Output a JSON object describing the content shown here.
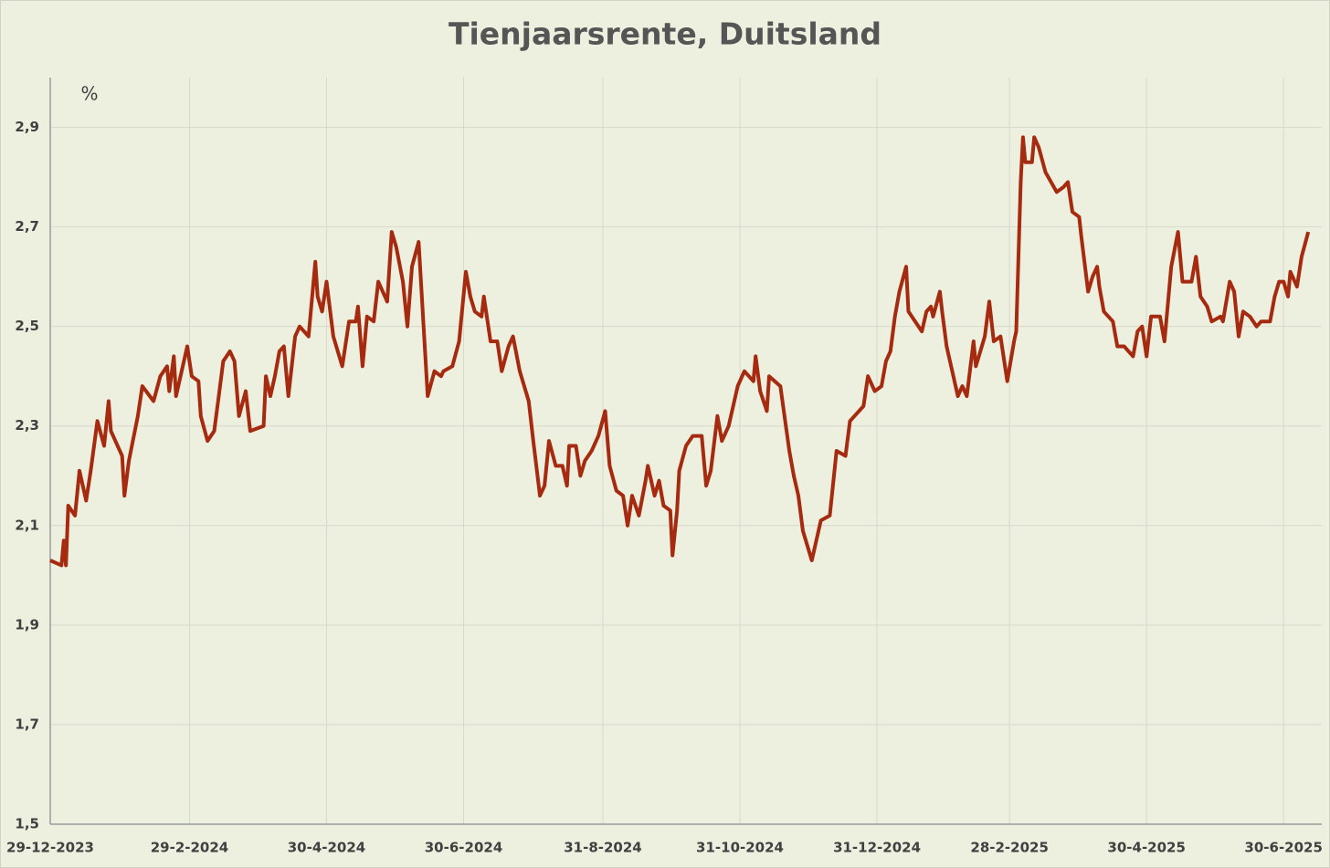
{
  "chart_data": {
    "type": "line",
    "title": "Tienjaarsrente, Duitsland",
    "y_label": "%",
    "x": [
      "2023-12-29",
      "2024-01-03",
      "2024-01-04",
      "2024-01-05",
      "2024-01-06",
      "2024-01-09",
      "2024-01-11",
      "2024-01-14",
      "2024-01-16",
      "2024-01-19",
      "2024-01-22",
      "2024-01-24",
      "2024-01-25",
      "2024-01-30",
      "2024-01-31",
      "2024-02-02",
      "2024-02-06",
      "2024-02-08",
      "2024-02-13",
      "2024-02-16",
      "2024-02-19",
      "2024-02-20",
      "2024-02-22",
      "2024-02-23",
      "2024-02-28",
      "2024-03-01",
      "2024-03-04",
      "2024-03-05",
      "2024-03-08",
      "2024-03-11",
      "2024-03-13",
      "2024-03-15",
      "2024-03-18",
      "2024-03-20",
      "2024-03-22",
      "2024-03-25",
      "2024-03-27",
      "2024-04-02",
      "2024-04-03",
      "2024-04-05",
      "2024-04-07",
      "2024-04-09",
      "2024-04-11",
      "2024-04-13",
      "2024-04-15",
      "2024-04-16",
      "2024-04-18",
      "2024-04-22",
      "2024-04-25",
      "2024-04-26",
      "2024-04-28",
      "2024-04-30",
      "2024-05-03",
      "2024-05-07",
      "2024-05-10",
      "2024-05-13",
      "2024-05-14",
      "2024-05-16",
      "2024-05-18",
      "2024-05-21",
      "2024-05-23",
      "2024-05-27",
      "2024-05-29",
      "2024-05-31",
      "2024-06-03",
      "2024-06-05",
      "2024-06-07",
      "2024-06-10",
      "2024-06-14",
      "2024-06-17",
      "2024-06-20",
      "2024-06-21",
      "2024-06-25",
      "2024-06-28",
      "2024-07-01",
      "2024-07-03",
      "2024-07-05",
      "2024-07-08",
      "2024-07-09",
      "2024-07-12",
      "2024-07-15",
      "2024-07-17",
      "2024-07-20",
      "2024-07-22",
      "2024-07-25",
      "2024-07-29",
      "2024-07-31",
      "2024-08-03",
      "2024-08-05",
      "2024-08-07",
      "2024-08-10",
      "2024-08-13",
      "2024-08-15",
      "2024-08-16",
      "2024-08-19",
      "2024-08-21",
      "2024-08-23",
      "2024-08-26",
      "2024-08-29",
      "2024-09-01",
      "2024-09-03",
      "2024-09-06",
      "2024-09-09",
      "2024-09-11",
      "2024-09-13",
      "2024-09-16",
      "2024-09-19",
      "2024-09-20",
      "2024-09-23",
      "2024-09-25",
      "2024-09-27",
      "2024-09-30",
      "2024-10-01",
      "2024-10-03",
      "2024-10-04",
      "2024-10-07",
      "2024-10-10",
      "2024-10-14",
      "2024-10-16",
      "2024-10-18",
      "2024-10-21",
      "2024-10-23",
      "2024-10-26",
      "2024-10-30",
      "2024-11-02",
      "2024-11-06",
      "2024-11-07",
      "2024-11-09",
      "2024-11-12",
      "2024-11-13",
      "2024-11-18",
      "2024-11-22",
      "2024-11-24",
      "2024-11-26",
      "2024-11-28",
      "2024-12-02",
      "2024-12-03",
      "2024-12-06",
      "2024-12-10",
      "2024-12-13",
      "2024-12-17",
      "2024-12-19",
      "2024-12-23",
      "2024-12-25",
      "2024-12-27",
      "2024-12-30",
      "2025-01-02",
      "2025-01-04",
      "2025-01-06",
      "2025-01-08",
      "2025-01-10",
      "2025-01-13",
      "2025-01-14",
      "2025-01-20",
      "2025-01-22",
      "2025-01-24",
      "2025-01-25",
      "2025-01-28",
      "2025-01-29",
      "2025-01-31",
      "2025-02-03",
      "2025-02-05",
      "2025-02-07",
      "2025-02-09",
      "2025-02-12",
      "2025-02-13",
      "2025-02-17",
      "2025-02-19",
      "2025-02-21",
      "2025-02-24",
      "2025-02-27",
      "2025-03-02",
      "2025-03-03",
      "2025-03-05",
      "2025-03-06",
      "2025-03-07",
      "2025-03-10",
      "2025-03-11",
      "2025-03-13",
      "2025-03-16",
      "2025-03-21",
      "2025-03-24",
      "2025-03-26",
      "2025-03-28",
      "2025-03-31",
      "2025-04-01",
      "2025-04-04",
      "2025-04-06",
      "2025-04-08",
      "2025-04-09",
      "2025-04-11",
      "2025-04-15",
      "2025-04-17",
      "2025-04-20",
      "2025-04-24",
      "2025-04-26",
      "2025-04-28",
      "2025-04-30",
      "2025-05-02",
      "2025-05-06",
      "2025-05-08",
      "2025-05-11",
      "2025-05-14",
      "2025-05-16",
      "2025-05-20",
      "2025-05-22",
      "2025-05-24",
      "2025-05-27",
      "2025-05-29",
      "2025-06-02",
      "2025-06-03",
      "2025-06-06",
      "2025-06-08",
      "2025-06-10",
      "2025-06-12",
      "2025-06-15",
      "2025-06-18",
      "2025-06-20",
      "2025-06-24",
      "2025-06-26",
      "2025-06-28",
      "2025-06-30",
      "2025-07-02",
      "2025-07-03",
      "2025-07-06",
      "2025-07-08",
      "2025-07-11"
    ],
    "series": [
      {
        "name": "Tienjaarsrente",
        "color": "#a52a10",
        "values": [
          2.03,
          2.02,
          2.07,
          2.02,
          2.14,
          2.12,
          2.21,
          2.15,
          2.21,
          2.31,
          2.26,
          2.35,
          2.29,
          2.24,
          2.16,
          2.23,
          2.32,
          2.38,
          2.35,
          2.4,
          2.42,
          2.37,
          2.44,
          2.36,
          2.46,
          2.4,
          2.39,
          2.32,
          2.27,
          2.29,
          2.36,
          2.43,
          2.45,
          2.43,
          2.32,
          2.37,
          2.29,
          2.3,
          2.4,
          2.36,
          2.4,
          2.45,
          2.46,
          2.36,
          2.44,
          2.48,
          2.5,
          2.48,
          2.63,
          2.56,
          2.53,
          2.59,
          2.48,
          2.42,
          2.51,
          2.51,
          2.54,
          2.42,
          2.52,
          2.51,
          2.59,
          2.55,
          2.69,
          2.66,
          2.59,
          2.5,
          2.62,
          2.67,
          2.36,
          2.41,
          2.4,
          2.41,
          2.42,
          2.47,
          2.61,
          2.56,
          2.53,
          2.52,
          2.56,
          2.47,
          2.47,
          2.41,
          2.46,
          2.48,
          2.41,
          2.35,
          2.27,
          2.16,
          2.18,
          2.27,
          2.22,
          2.22,
          2.18,
          2.26,
          2.26,
          2.2,
          2.23,
          2.25,
          2.28,
          2.33,
          2.22,
          2.17,
          2.16,
          2.1,
          2.16,
          2.12,
          2.19,
          2.22,
          2.16,
          2.19,
          2.14,
          2.13,
          2.04,
          2.13,
          2.21,
          2.26,
          2.28,
          2.28,
          2.18,
          2.21,
          2.32,
          2.27,
          2.3,
          2.38,
          2.41,
          2.39,
          2.44,
          2.37,
          2.33,
          2.4,
          2.38,
          2.25,
          2.2,
          2.16,
          2.09,
          2.03,
          2.05,
          2.11,
          2.12,
          2.25,
          2.24,
          2.31,
          2.33,
          2.34,
          2.4,
          2.37,
          2.38,
          2.43,
          2.45,
          2.52,
          2.57,
          2.62,
          2.53,
          2.49,
          2.53,
          2.54,
          2.52,
          2.57,
          2.53,
          2.46,
          2.4,
          2.36,
          2.38,
          2.36,
          2.47,
          2.42,
          2.48,
          2.55,
          2.47,
          2.48,
          2.39,
          2.47,
          2.49,
          2.79,
          2.88,
          2.83,
          2.83,
          2.88,
          2.86,
          2.81,
          2.77,
          2.78,
          2.79,
          2.73,
          2.72,
          2.68,
          2.57,
          2.6,
          2.62,
          2.58,
          2.53,
          2.51,
          2.46,
          2.46,
          2.44,
          2.49,
          2.5,
          2.44,
          2.52,
          2.52,
          2.47,
          2.62,
          2.69,
          2.59,
          2.59,
          2.64,
          2.56,
          2.54,
          2.51,
          2.52,
          2.51,
          2.59,
          2.57,
          2.48,
          2.53,
          2.52,
          2.5,
          2.51,
          2.51,
          2.56,
          2.59,
          2.59,
          2.56,
          2.61,
          2.58,
          2.64,
          2.69
        ]
      }
    ],
    "xlim": [
      "2023-12-29",
      "2025-07-17"
    ],
    "xticks": [
      {
        "value": "2023-12-29",
        "label": "29-12-2023"
      },
      {
        "value": "2024-02-29",
        "label": "29-2-2024"
      },
      {
        "value": "2024-04-30",
        "label": "30-4-2024"
      },
      {
        "value": "2024-06-30",
        "label": "30-6-2024"
      },
      {
        "value": "2024-08-31",
        "label": "31-8-2024"
      },
      {
        "value": "2024-10-31",
        "label": "31-10-2024"
      },
      {
        "value": "2024-12-31",
        "label": "31-12-2024"
      },
      {
        "value": "2025-02-28",
        "label": "28-2-2025"
      },
      {
        "value": "2025-04-30",
        "label": "30-4-2025"
      },
      {
        "value": "2025-06-30",
        "label": "30-6-2025"
      }
    ],
    "ylim": [
      1.5,
      3.0
    ],
    "yticks": [
      {
        "value": 1.5,
        "label": "1,5"
      },
      {
        "value": 1.7,
        "label": "1,7"
      },
      {
        "value": 1.9,
        "label": "1,9"
      },
      {
        "value": 2.1,
        "label": "2,1"
      },
      {
        "value": 2.3,
        "label": "2,3"
      },
      {
        "value": 2.5,
        "label": "2,5"
      },
      {
        "value": 2.7,
        "label": "2,7"
      },
      {
        "value": 2.9,
        "label": "2,9"
      }
    ],
    "grid": true
  }
}
